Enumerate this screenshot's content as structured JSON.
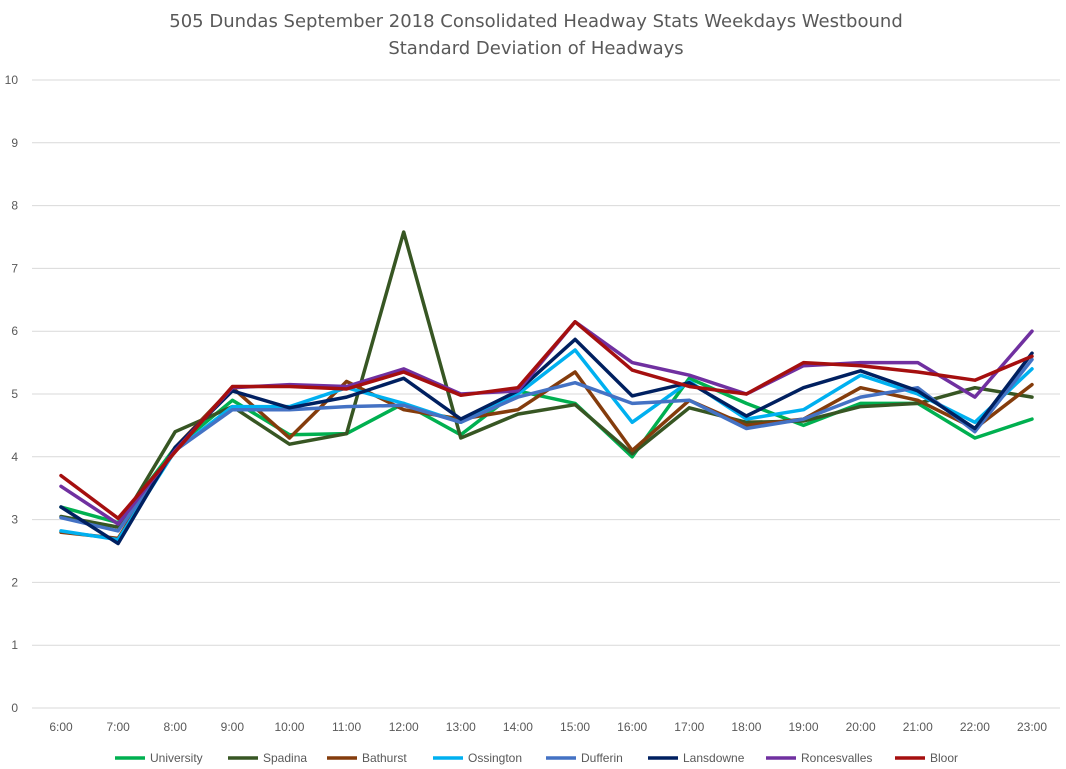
{
  "chart_data": {
    "type": "line",
    "title": "505 Dundas   September 2018  Consolidated Headway Stats Weekdays Westbound",
    "subtitle": "Standard Deviation of Headways",
    "xlabel": "",
    "ylabel": "",
    "ylim": [
      0,
      10
    ],
    "yticks": [
      "0",
      "1",
      "2",
      "3",
      "4",
      "5",
      "6",
      "7",
      "8",
      "9",
      "10"
    ],
    "grid": true,
    "legend_position": "bottom",
    "categories": [
      "6:00",
      "7:00",
      "8:00",
      "9:00",
      "10:00",
      "11:00",
      "12:00",
      "13:00",
      "14:00",
      "15:00",
      "16:00",
      "17:00",
      "18:00",
      "19:00",
      "20:00",
      "21:00",
      "22:00",
      "23:00"
    ],
    "series": [
      {
        "name": "University",
        "color": "#00b050",
        "values": [
          3.2,
          2.95,
          4.15,
          4.9,
          4.35,
          4.37,
          4.85,
          4.35,
          5.05,
          4.85,
          4.0,
          5.25,
          4.85,
          4.5,
          4.85,
          4.85,
          4.3,
          4.6
        ]
      },
      {
        "name": "Spadina",
        "color": "#375623",
        "values": [
          3.05,
          2.88,
          4.4,
          4.8,
          4.2,
          4.37,
          7.58,
          4.3,
          4.68,
          4.83,
          4.05,
          4.78,
          4.55,
          4.57,
          4.8,
          4.85,
          5.1,
          4.95
        ]
      },
      {
        "name": "Bathurst",
        "color": "#843c0c",
        "values": [
          2.8,
          2.7,
          4.15,
          5.1,
          4.3,
          5.2,
          4.75,
          4.6,
          4.75,
          5.35,
          4.1,
          4.9,
          4.5,
          4.6,
          5.1,
          4.9,
          4.45,
          5.15
        ]
      },
      {
        "name": "Ossington",
        "color": "#00b0f0",
        "values": [
          2.82,
          2.68,
          4.1,
          4.8,
          4.8,
          5.1,
          4.85,
          4.55,
          5.0,
          5.7,
          4.55,
          5.2,
          4.6,
          4.75,
          5.3,
          5.0,
          4.55,
          5.4
        ]
      },
      {
        "name": "Dufferin",
        "color": "#4472c4",
        "values": [
          3.03,
          2.82,
          4.1,
          4.75,
          4.75,
          4.8,
          4.82,
          4.55,
          4.95,
          5.18,
          4.85,
          4.9,
          4.45,
          4.6,
          4.95,
          5.1,
          4.4,
          5.55
        ]
      },
      {
        "name": "Lansdowne",
        "color": "#002060",
        "values": [
          3.2,
          2.62,
          4.15,
          5.05,
          4.78,
          4.95,
          5.25,
          4.6,
          5.05,
          5.87,
          4.97,
          5.18,
          4.65,
          5.1,
          5.37,
          5.05,
          4.45,
          5.65
        ]
      },
      {
        "name": "Roncesvalles",
        "color": "#7030a0",
        "values": [
          3.53,
          2.93,
          4.1,
          5.1,
          5.15,
          5.12,
          5.4,
          5.0,
          5.05,
          6.15,
          5.5,
          5.3,
          5.0,
          5.45,
          5.5,
          5.5,
          4.95,
          6.0
        ]
      },
      {
        "name": "Bloor",
        "color": "#a50f0f",
        "values": [
          3.7,
          3.02,
          4.08,
          5.12,
          5.12,
          5.08,
          5.35,
          4.98,
          5.1,
          6.15,
          5.38,
          5.12,
          5.0,
          5.5,
          5.45,
          5.35,
          5.22,
          5.6
        ]
      }
    ]
  }
}
